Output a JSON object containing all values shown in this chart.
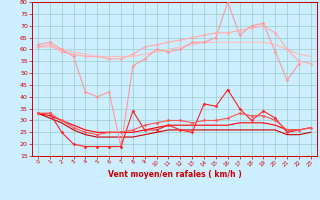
{
  "title": "",
  "xlabel": "Vent moyen/en rafales ( km/h )",
  "ylabel": "",
  "background_color": "#cceeff",
  "grid_color": "#99cccc",
  "x": [
    0,
    1,
    2,
    3,
    4,
    5,
    6,
    7,
    8,
    9,
    10,
    11,
    12,
    13,
    14,
    15,
    16,
    17,
    18,
    19,
    20,
    21,
    22,
    23
  ],
  "series": [
    {
      "name": "rafales_max",
      "color": "#ff9999",
      "linewidth": 0.8,
      "marker": "D",
      "markersize": 1.5,
      "values": [
        62,
        63,
        60,
        57,
        42,
        40,
        42,
        19,
        53,
        56,
        60,
        59,
        60,
        63,
        63,
        65,
        80,
        66,
        70,
        71,
        59,
        47,
        54,
        null
      ]
    },
    {
      "name": "rafales_mean_upper",
      "color": "#ffaaaa",
      "linewidth": 0.8,
      "marker": "D",
      "markersize": 1.5,
      "values": [
        61,
        62,
        59,
        58,
        57,
        57,
        56,
        56,
        58,
        61,
        62,
        63,
        64,
        65,
        66,
        67,
        67,
        68,
        69,
        70,
        67,
        60,
        55,
        54
      ]
    },
    {
      "name": "rafales_avg",
      "color": "#ffbbbb",
      "linewidth": 0.8,
      "marker": null,
      "markersize": 0,
      "values": [
        61,
        61,
        60,
        59,
        58,
        57,
        57,
        57,
        57,
        58,
        59,
        60,
        61,
        62,
        63,
        63,
        63,
        63,
        63,
        63,
        62,
        60,
        58,
        57
      ]
    },
    {
      "name": "vent_max",
      "color": "#ff2222",
      "linewidth": 0.8,
      "marker": "D",
      "markersize": 1.5,
      "values": [
        33,
        33,
        25,
        20,
        19,
        19,
        19,
        19,
        34,
        26,
        26,
        28,
        26,
        25,
        37,
        36,
        43,
        35,
        30,
        34,
        31,
        25,
        26,
        null
      ]
    },
    {
      "name": "vent_mean_upper",
      "color": "#ff5555",
      "linewidth": 0.8,
      "marker": "D",
      "markersize": 1.5,
      "values": [
        33,
        33,
        30,
        27,
        25,
        24,
        25,
        25,
        26,
        28,
        29,
        30,
        30,
        29,
        30,
        30,
        31,
        33,
        32,
        32,
        30,
        26,
        26,
        27
      ]
    },
    {
      "name": "vent_avg",
      "color": "#ff0000",
      "linewidth": 0.8,
      "marker": null,
      "markersize": 0,
      "values": [
        33,
        32,
        30,
        28,
        26,
        25,
        25,
        25,
        25,
        26,
        27,
        28,
        28,
        28,
        28,
        28,
        28,
        29,
        29,
        29,
        28,
        26,
        26,
        27
      ]
    },
    {
      "name": "vent_min",
      "color": "#cc0000",
      "linewidth": 0.8,
      "marker": null,
      "markersize": 0,
      "values": [
        33,
        31,
        29,
        26,
        24,
        23,
        23,
        23,
        23,
        24,
        25,
        26,
        26,
        26,
        26,
        26,
        26,
        26,
        26,
        26,
        26,
        24,
        24,
        25
      ]
    }
  ],
  "ylim": [
    15,
    80
  ],
  "yticks": [
    15,
    20,
    25,
    30,
    35,
    40,
    45,
    50,
    55,
    60,
    65,
    70,
    75,
    80
  ],
  "xlim": [
    -0.5,
    23.5
  ],
  "tick_color": "#cc0000",
  "xlabel_fontsize": 5.5,
  "ylabel_fontsize": 5.0,
  "xtick_fontsize": 4.0,
  "ytick_fontsize": 4.5
}
